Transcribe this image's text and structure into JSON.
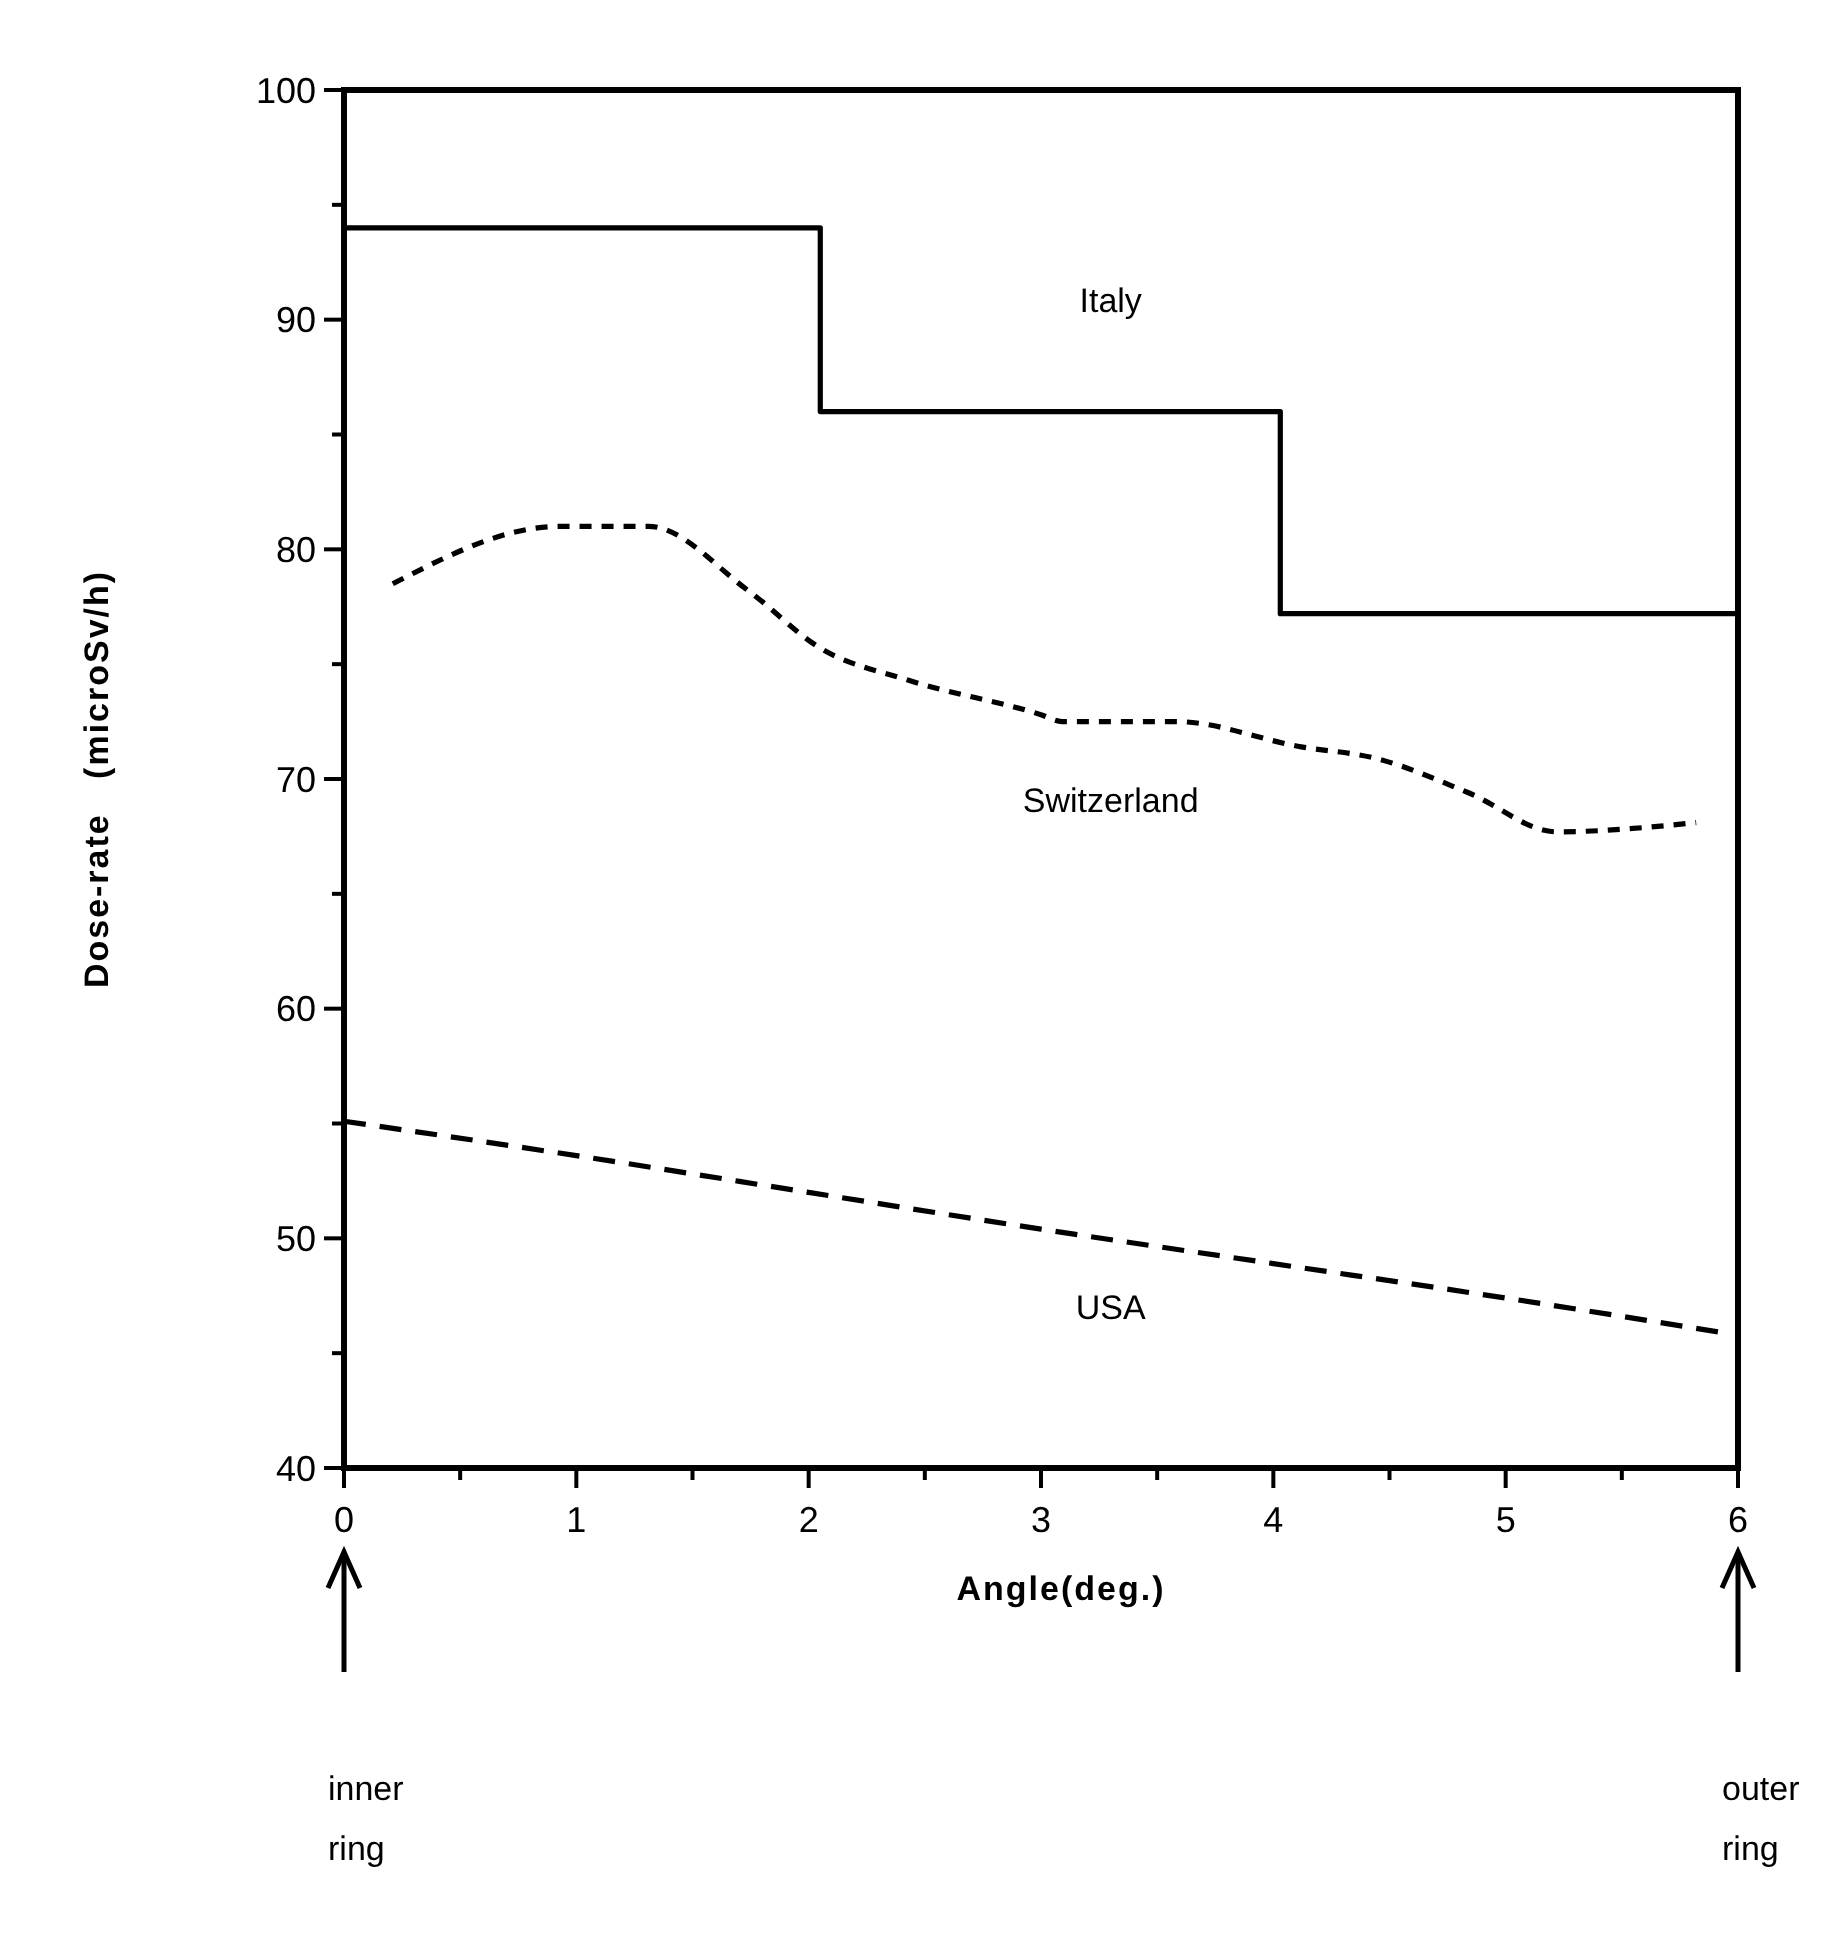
{
  "chart_data": {
    "type": "line",
    "xlabel": "Angle(deg.)",
    "ylabel": "Dose-rate   (microSv/h)",
    "xlim": [
      0,
      6
    ],
    "xticks": [
      0,
      {
        "value": 0.5,
        "label": null
      },
      1,
      {
        "value": 1.5,
        "label": null
      },
      2,
      {
        "value": 2.5,
        "label": null
      },
      3,
      {
        "value": 3.5,
        "label": null
      },
      4,
      {
        "value": 4.5,
        "label": null
      },
      5,
      {
        "value": 5.5,
        "label": null
      },
      6
    ],
    "ylim": [
      40,
      100
    ],
    "yticks": [
      40,
      {
        "value": 45,
        "label": null
      },
      50,
      {
        "value": 55,
        "label": null
      },
      60,
      {
        "value": 65,
        "label": null
      },
      70,
      {
        "value": 75,
        "label": null
      },
      80,
      {
        "value": 85,
        "label": null
      },
      90,
      {
        "value": 95,
        "label": null
      },
      100
    ],
    "grid": false,
    "marker": "none",
    "series": [
      {
        "name": "Italy",
        "type": "step",
        "color": "#000000",
        "line_style": "solid",
        "x": [
          0,
          2.05,
          4.03,
          6
        ],
        "values": [
          94,
          86,
          77.2,
          77.2
        ]
      },
      {
        "name": "Switzerland",
        "color": "#000000",
        "line_style": "dotted",
        "x": [
          0.21,
          0.93,
          1.31,
          1.74,
          2.05,
          2.43,
          3.0,
          3.09,
          3.58,
          4.12,
          4.44,
          4.84,
          5.22,
          5.82
        ],
        "values": [
          78.5,
          81,
          81,
          78.2,
          75.7,
          74.3,
          72.8,
          72.5,
          72.5,
          71.4,
          70.9,
          69.4,
          67.7,
          68.1
        ]
      },
      {
        "name": "USA",
        "color": "#000000",
        "line_style": "dashed",
        "x": [
          0,
          1,
          2,
          3,
          4,
          5,
          5.93
        ],
        "values": [
          55.1,
          53.6,
          52,
          50.4,
          48.9,
          47.4,
          45.9
        ]
      }
    ],
    "annotations": [
      "inner ring",
      "outer ring"
    ]
  }
}
